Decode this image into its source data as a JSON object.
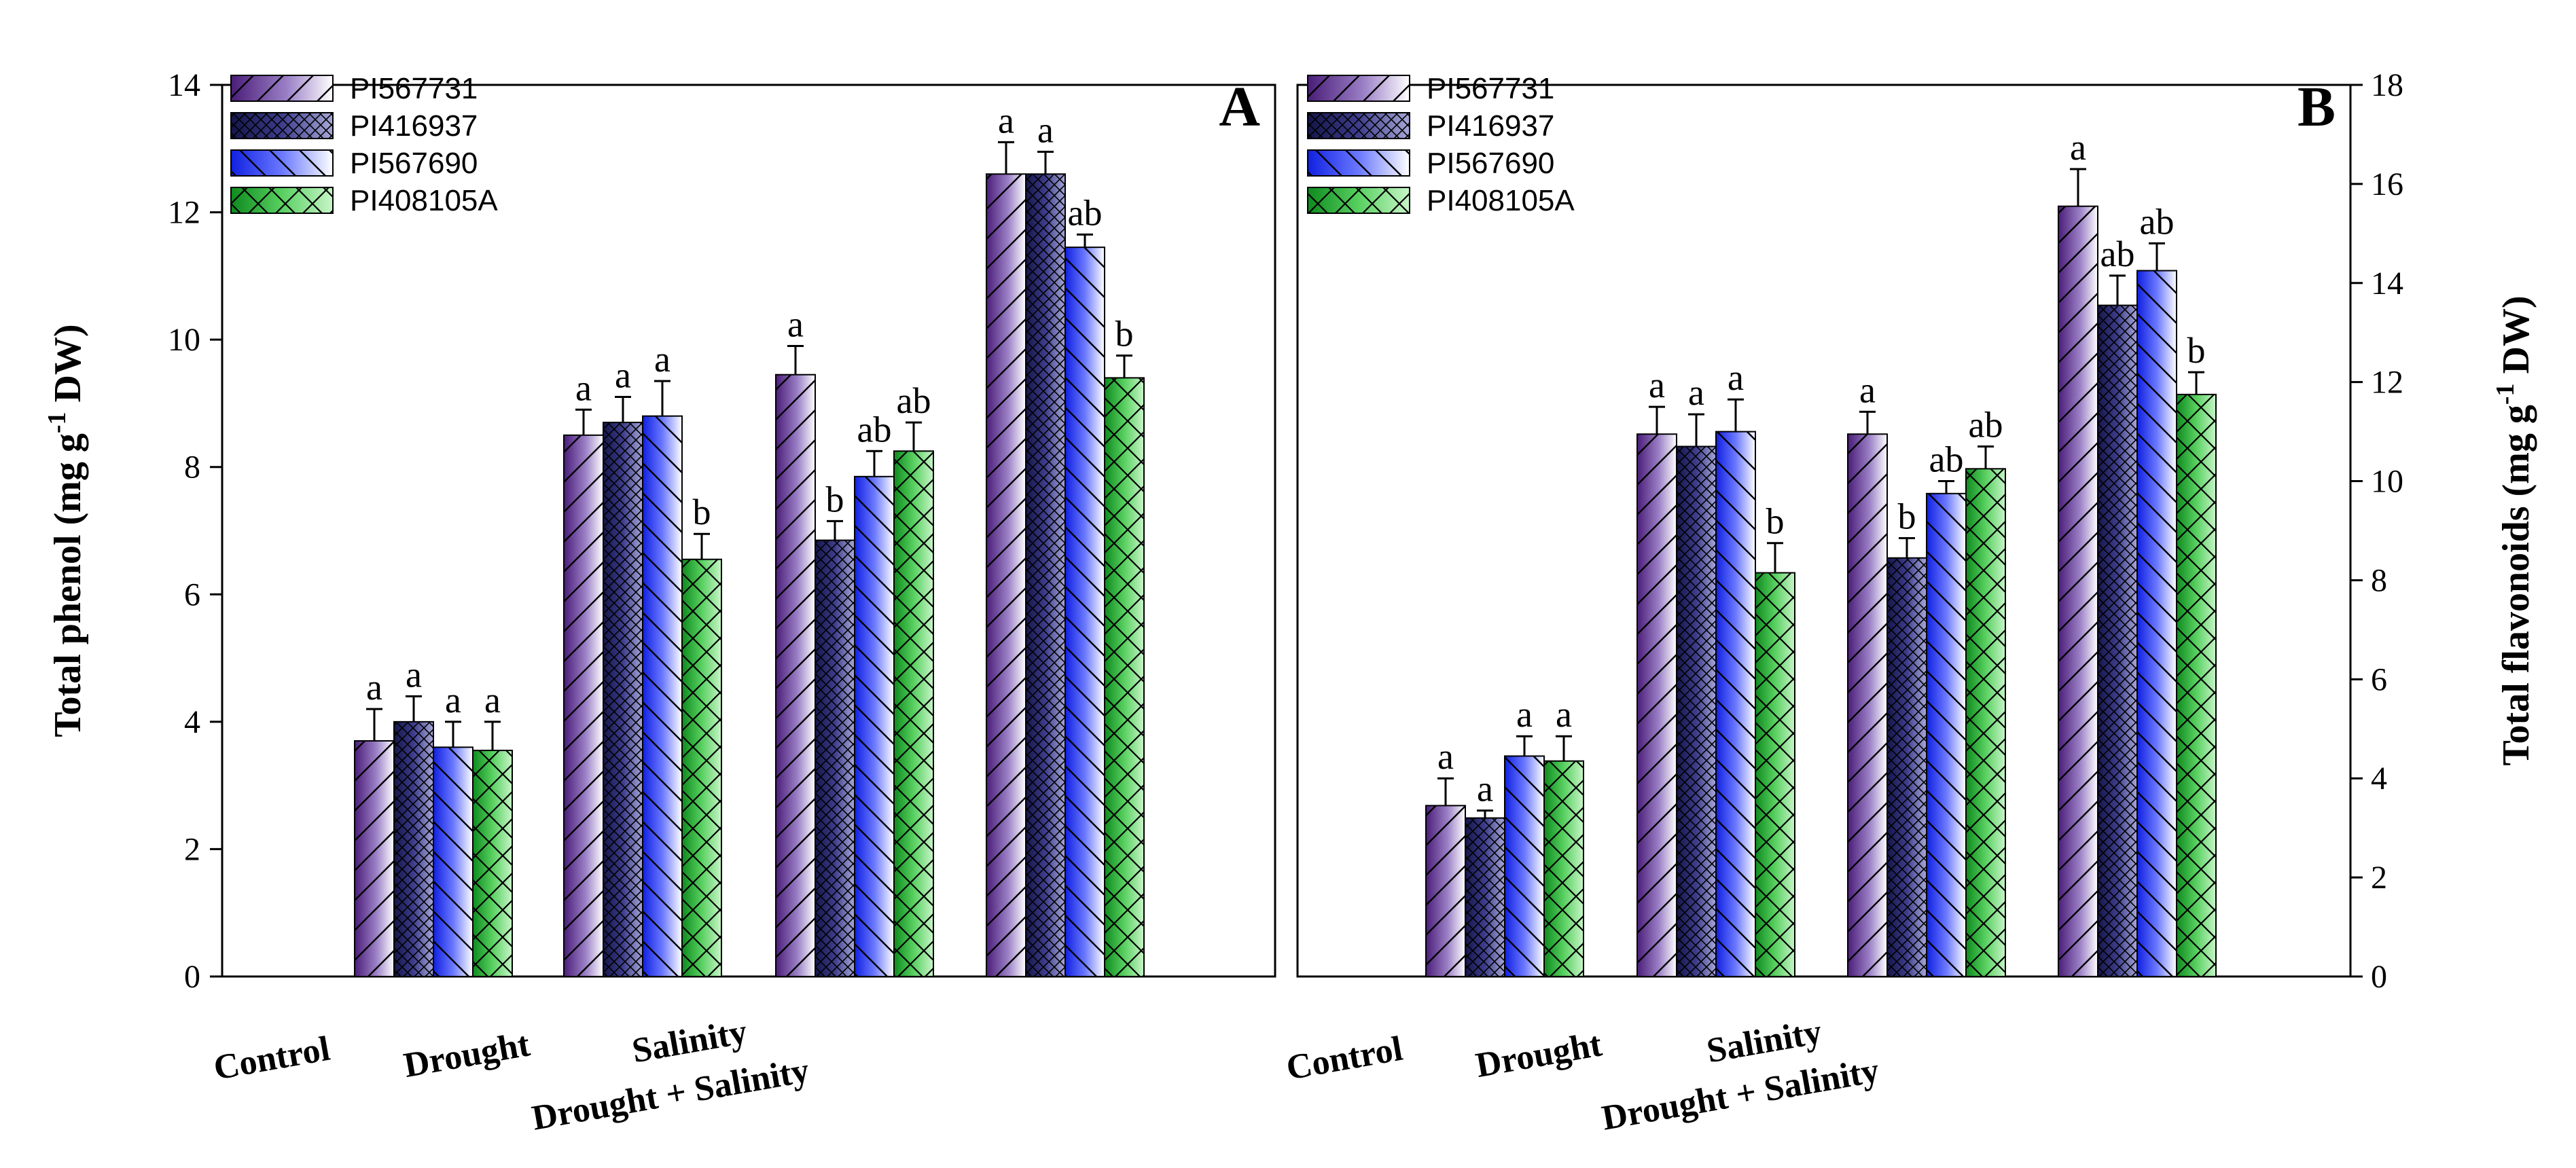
{
  "chart_data": [
    {
      "panel": "A",
      "type": "bar",
      "ylabel_main": "Total phenol (mg g",
      "ylabel_sup": "-1",
      "ylabel_tail": " DW)",
      "ylim": [
        0,
        14
      ],
      "ytick_values": [
        0,
        2,
        4,
        6,
        8,
        10,
        12,
        14
      ],
      "ytick_labels": [
        "0",
        "2",
        "4",
        "6",
        "8",
        "10",
        "12",
        "14"
      ],
      "categories": [
        "Control",
        "Drought",
        "Salinity",
        "Drought + Salinity"
      ],
      "legend_position": "top-left",
      "series": [
        {
          "name": "PI567731",
          "values": [
            3.7,
            8.5,
            9.45,
            12.6
          ],
          "errors": [
            0.5,
            0.4,
            0.45,
            0.5
          ],
          "letters": [
            "a",
            "a",
            "a",
            "a"
          ]
        },
        {
          "name": "PI416937",
          "values": [
            4.0,
            8.7,
            6.85,
            12.6
          ],
          "errors": [
            0.4,
            0.4,
            0.3,
            0.35
          ],
          "letters": [
            "a",
            "a",
            "b",
            "a"
          ]
        },
        {
          "name": "PI567690",
          "values": [
            3.6,
            8.8,
            7.85,
            11.45
          ],
          "errors": [
            0.4,
            0.55,
            0.4,
            0.2
          ],
          "letters": [
            "a",
            "a",
            "ab",
            "ab"
          ]
        },
        {
          "name": "PI408105A",
          "values": [
            3.55,
            6.55,
            8.25,
            9.4
          ],
          "errors": [
            0.45,
            0.4,
            0.45,
            0.35
          ],
          "letters": [
            "a",
            "b",
            "ab",
            "b"
          ]
        }
      ]
    },
    {
      "panel": "B",
      "type": "bar",
      "ylabel_main": "Total flavonoids  (mg g",
      "ylabel_sup": "-1",
      "ylabel_tail": " DW)",
      "ylim": [
        0,
        18
      ],
      "ytick_values": [
        0,
        2,
        4,
        6,
        8,
        10,
        12,
        14,
        16,
        18
      ],
      "ytick_labels": [
        "0",
        "2",
        "4",
        "6",
        "8",
        "10",
        "12",
        "14",
        "16",
        "18"
      ],
      "categories": [
        "Control",
        "Drought",
        "Salinity",
        "Drought + Salinity"
      ],
      "legend_position": "top-left",
      "series": [
        {
          "name": "PI567731",
          "values": [
            3.45,
            10.95,
            10.95,
            15.55
          ],
          "errors": [
            0.55,
            0.55,
            0.45,
            0.75
          ],
          "letters": [
            "a",
            "a",
            "a",
            "a"
          ]
        },
        {
          "name": "PI416937",
          "values": [
            3.2,
            10.7,
            8.45,
            13.55
          ],
          "errors": [
            0.15,
            0.65,
            0.4,
            0.6
          ],
          "letters": [
            "a",
            "a",
            "b",
            "ab"
          ]
        },
        {
          "name": "PI567690",
          "values": [
            4.45,
            11.0,
            9.75,
            14.25
          ],
          "errors": [
            0.4,
            0.65,
            0.25,
            0.55
          ],
          "letters": [
            "a",
            "a",
            "ab",
            "ab"
          ]
        },
        {
          "name": "PI408105A",
          "values": [
            4.35,
            8.15,
            10.25,
            11.75
          ],
          "errors": [
            0.5,
            0.6,
            0.45,
            0.45
          ],
          "letters": [
            "a",
            "b",
            "ab",
            "b"
          ]
        }
      ]
    }
  ]
}
